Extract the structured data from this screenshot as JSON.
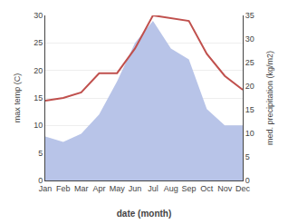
{
  "chart_data": {
    "type": "line",
    "x_label": "date (month)",
    "y_label": "max temp (C)",
    "y2_label": "med. precipitation (kg/m2)",
    "categories": [
      "Jan",
      "Feb",
      "Mar",
      "Apr",
      "May",
      "Jun",
      "Jul",
      "Aug",
      "Sep",
      "Oct",
      "Nov",
      "Dec"
    ],
    "series": [
      {
        "type": "area",
        "color": "#b8c4e8",
        "values": [
          8.0,
          7.0,
          8.5,
          12.0,
          18.0,
          25.0,
          29.0,
          24.0,
          22.0,
          13.0,
          10.0,
          10.0
        ]
      },
      {
        "type": "line",
        "color": "#c0504d",
        "values": [
          14.5,
          15.0,
          16.0,
          19.5,
          19.5,
          24.0,
          30.0,
          29.5,
          29.0,
          23.0,
          19.0,
          16.5
        ]
      }
    ],
    "ylim": [
      0,
      30
    ],
    "yticks": [
      0,
      5,
      10,
      15,
      20,
      25,
      30
    ],
    "y2lim": [
      0,
      35
    ],
    "y2ticks": [
      0,
      5,
      10,
      15,
      20,
      25,
      30,
      35
    ],
    "grid": true
  }
}
